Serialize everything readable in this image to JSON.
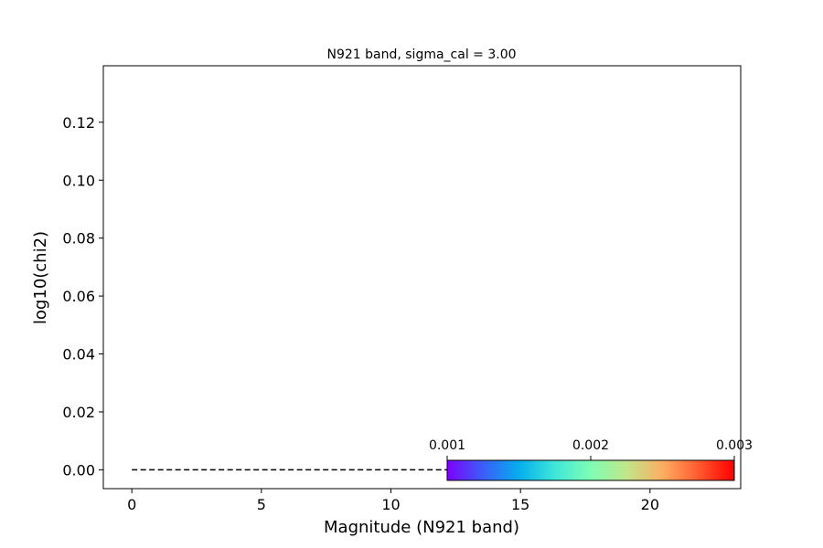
{
  "chart_data": {
    "type": "line",
    "title": "N921 band, sigma_cal = 3.00",
    "xlabel": "Magnitude (N921 band)",
    "ylabel": "log10(chi2)",
    "xlim": [
      -1.1,
      23.5
    ],
    "ylim": [
      -0.0065,
      0.1395
    ],
    "xticks": [
      0,
      5,
      10,
      15,
      20
    ],
    "yticks": [
      0.0,
      0.02,
      0.04,
      0.06,
      0.08,
      0.1,
      0.12
    ],
    "ytick_labels": [
      "0.00",
      "0.02",
      "0.04",
      "0.06",
      "0.08",
      "0.10",
      "0.12"
    ],
    "grid": false,
    "series": [
      {
        "style": "dashed",
        "color": "#000000",
        "x": [
          0,
          23.2
        ],
        "y": [
          0,
          0
        ]
      }
    ],
    "colorbar": {
      "orientation": "horizontal",
      "colormap": "rainbow",
      "range": [
        0.001,
        0.003
      ],
      "ticks": [
        0.001,
        0.002,
        0.003
      ],
      "tick_labels": [
        "0.001",
        "0.002",
        "0.003"
      ],
      "colors": [
        "#7f00ff",
        "#3c5df9",
        "#06aeed",
        "#3ee7d8",
        "#7efeb4",
        "#c0e68b",
        "#fbae62",
        "#ff5b2f",
        "#ff0000"
      ]
    }
  }
}
